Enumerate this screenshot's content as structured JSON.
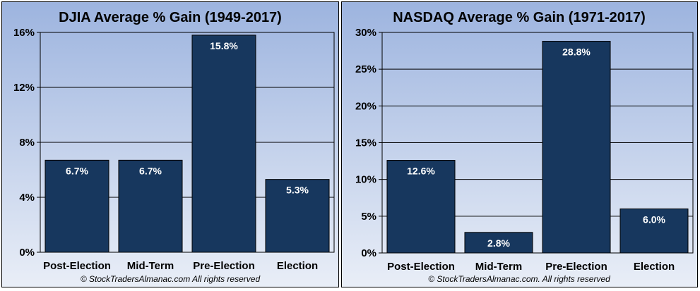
{
  "chart_data": [
    {
      "type": "bar",
      "title": "DJIA Average % Gain (1949-2017)",
      "categories": [
        "Post-Election",
        "Mid-Term",
        "Pre-Election",
        "Election"
      ],
      "values": [
        6.7,
        6.7,
        15.8,
        5.3
      ],
      "value_labels": [
        "6.7%",
        "6.7%",
        "15.8%",
        "5.3%"
      ],
      "ylim": [
        0,
        16
      ],
      "yticks": [
        0,
        4,
        8,
        12,
        16
      ],
      "ytick_labels": [
        "0%",
        "4%",
        "8%",
        "12%",
        "16%"
      ],
      "grid": true,
      "bar_color": "#17375e",
      "copyright": "© StockTradersAlmanac.com All rights reserved"
    },
    {
      "type": "bar",
      "title": "NASDAQ Average % Gain (1971-2017)",
      "categories": [
        "Post-Election",
        "Mid-Term",
        "Pre-Election",
        "Election"
      ],
      "values": [
        12.6,
        2.8,
        28.8,
        6.0
      ],
      "value_labels": [
        "12.6%",
        "2.8%",
        "28.8%",
        "6.0%"
      ],
      "ylim": [
        0,
        30
      ],
      "yticks": [
        0,
        5,
        10,
        15,
        20,
        25,
        30
      ],
      "ytick_labels": [
        "0%",
        "5%",
        "10%",
        "15%",
        "20%",
        "25%",
        "30%"
      ],
      "grid": true,
      "bar_color": "#17375e",
      "copyright": "© StockTradersAlmanac.com. All rights reserved"
    }
  ]
}
